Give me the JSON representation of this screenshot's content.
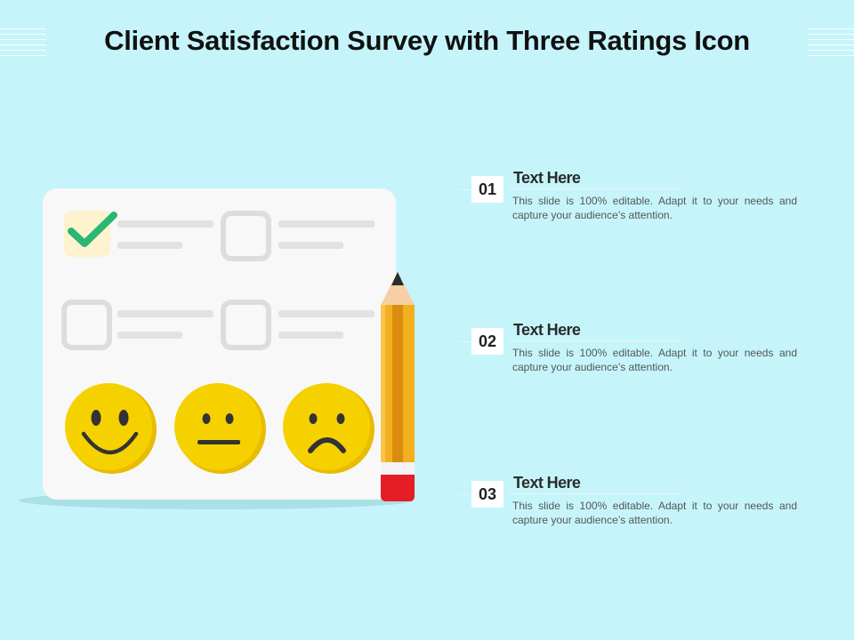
{
  "title": "Client Satisfaction Survey with Three Ratings Icon",
  "items": [
    {
      "number": "01",
      "heading": "Text Here",
      "description": "This slide is 100% editable. Adapt it to your needs and capture your audience’s attention."
    },
    {
      "number": "02",
      "heading": "Text Here",
      "description": "This slide is 100% editable. Adapt it to your needs and capture your audience’s attention."
    },
    {
      "number": "03",
      "heading": "Text Here",
      "description": "This slide is 100% editable. Adapt it to your needs and capture your audience’s attention."
    }
  ],
  "colors": {
    "background": "#c5f5fb",
    "checkmark": "#2bb673",
    "checkbox_checked_bg": "#fdf4cf",
    "face": "#f6d100",
    "face_shade": "#e8bc00",
    "pencil_body": "#f2b01e",
    "pencil_eraser": "#e51e25"
  },
  "icons": [
    "checkmark-icon",
    "checkbox-icon",
    "happy-face-icon",
    "neutral-face-icon",
    "sad-face-icon",
    "pencil-icon"
  ]
}
